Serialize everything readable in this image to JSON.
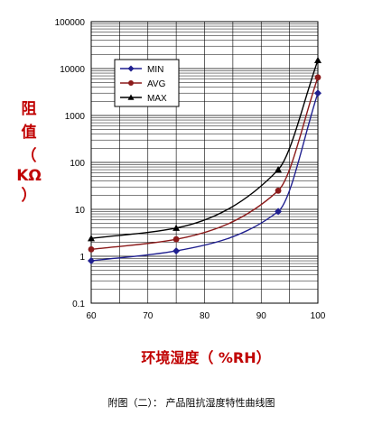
{
  "chart_data": {
    "type": "line",
    "xlabel": "环境湿度（  %RH）",
    "ylabel_chars": [
      "阻",
      "值",
      "（",
      "KΩ",
      "）"
    ],
    "caption": "附图（二）：  产品阻抗湿度特性曲线图",
    "x_ticks": [
      "60",
      "70",
      "80",
      "90",
      "100"
    ],
    "y_ticks": [
      "0.1",
      "1",
      "10",
      "100",
      "1000",
      "10000",
      "100000"
    ],
    "xlim": [
      60,
      100
    ],
    "ylim": [
      0.1,
      100000
    ],
    "y_scale": "log",
    "grid": true,
    "legend_position": "top-left",
    "x": [
      60,
      75,
      93,
      100
    ],
    "series": [
      {
        "name": "MIN",
        "marker": "diamond",
        "color": "#1f1f8f",
        "values": [
          0.8,
          1.3,
          9,
          3000
        ]
      },
      {
        "name": "AVG",
        "marker": "circle",
        "color": "#8b1a1a",
        "values": [
          1.4,
          2.3,
          25,
          6500
        ]
      },
      {
        "name": "MAX",
        "marker": "triangle",
        "color": "#000000",
        "values": [
          2.4,
          4,
          70,
          15000
        ]
      }
    ]
  }
}
